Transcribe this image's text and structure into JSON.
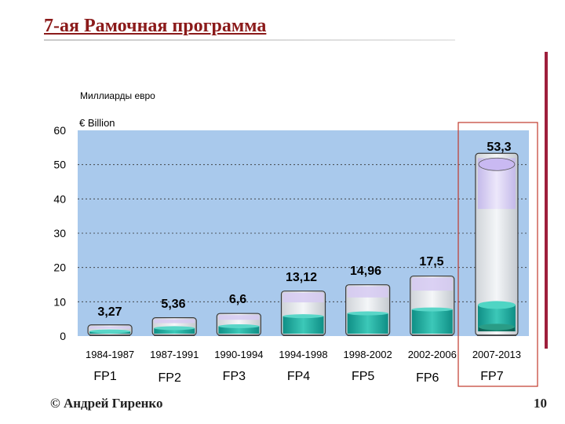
{
  "page": {
    "title": "7-ая Рамочная программа",
    "footer": "© Андрей Гиренко",
    "page_number": "10"
  },
  "chart_data": {
    "type": "bar",
    "ylabel_ru": "Миллиарды евро",
    "ylabel_en": "€ Billion",
    "ylim": [
      0,
      60
    ],
    "yticks": [
      0,
      10,
      20,
      30,
      40,
      50,
      60
    ],
    "categories": [
      "1984-1987",
      "1987-1991",
      "1990-1994",
      "1994-1998",
      "1998-2002",
      "2002-2006",
      "2007-2013"
    ],
    "programs": [
      "FP1",
      "FP2",
      "FP3",
      "FP4",
      "FP5",
      "FP6",
      "FP7"
    ],
    "values": [
      3.27,
      5.36,
      6.6,
      13.12,
      14.96,
      17.5,
      53.3
    ],
    "value_labels": [
      "3,27",
      "5,36",
      "6,6",
      "13,12",
      "14,96",
      "17,5",
      "53,3"
    ],
    "highlighted": "FP7",
    "grid": true,
    "colors": {
      "plot_bg": "#a9c9ec",
      "highlight_border": "#c0392b",
      "liquid": "#1aa79a",
      "glass_top": "#d6caf2"
    }
  }
}
